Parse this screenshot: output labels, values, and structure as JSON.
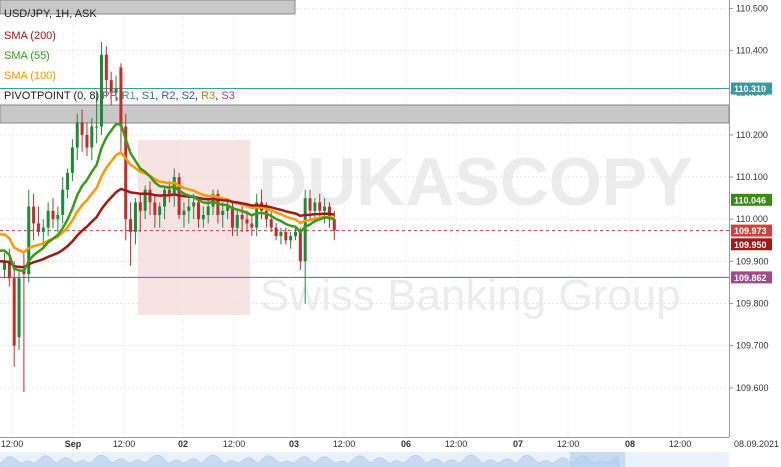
{
  "chart_data": {
    "type": "candlestick",
    "title": "USD/JPY, 1H, ASK",
    "watermark": {
      "brand": "DUKASCOPY",
      "tagline": "Swiss Banking Group"
    },
    "colors": {
      "up": "#1d8a3a",
      "down": "#c42b2b",
      "sma200": "#a01818",
      "sma55": "#3a9a1a",
      "sma100": "#ff9900",
      "pivot": "#3aa0a0",
      "s1line": "#a04a8a",
      "current": "#d04040"
    },
    "y_axis": {
      "min": 109.5,
      "max": 110.52,
      "ticks": [
        "110.500",
        "110.400",
        "110.300",
        "110.200",
        "110.100",
        "110.000",
        "109.900",
        "109.800",
        "109.700",
        "109.600"
      ]
    },
    "x_axis": {
      "ticks": [
        "12:00",
        "Sep",
        "12:00",
        "02",
        "12:00",
        "03",
        "12:00",
        "06",
        "12:00",
        "07",
        "12:00",
        "08",
        "12:00"
      ],
      "last_label": "08.09.2021"
    },
    "legend": [
      {
        "label": "SMA (200)",
        "color": "#a01818"
      },
      {
        "label": "SMA (55)",
        "color": "#3a9a1a"
      },
      {
        "label": "SMA (100)",
        "color": "#ff9900"
      }
    ],
    "pivot_legend": {
      "prefix": "PIVOTPOINT (0, 8)",
      "items": [
        {
          "label": "PP",
          "color": "#a04a8a"
        },
        {
          "label": "R1",
          "color": "#2a9a8a"
        },
        {
          "label": "S1",
          "color": "#2a7a8a"
        },
        {
          "label": "R2",
          "color": "#3a5aa0"
        },
        {
          "label": "S2",
          "color": "#3a5aa0"
        },
        {
          "label": "R3",
          "color": "#c07a20"
        },
        {
          "label": "S3",
          "color": "#a040a0"
        }
      ]
    },
    "price_tags": [
      {
        "value": "110.310",
        "price": 110.31,
        "color": "#3a9aa0"
      },
      {
        "value": "110.046",
        "price": 110.046,
        "color": "#3a8a1a"
      },
      {
        "value": "109.973",
        "price": 109.973,
        "color": "#d04040"
      },
      {
        "value": "109.950",
        "price": 109.95,
        "color": "#a01818"
      },
      {
        "value": "109.862",
        "price": 109.862,
        "color": "#a04a8a"
      }
    ],
    "levels": [
      {
        "name": "R1",
        "price": 110.31
      },
      {
        "name": "S1",
        "price": 109.862
      }
    ],
    "candles": [
      [
        109.88,
        109.92,
        109.86,
        109.9
      ],
      [
        109.9,
        109.93,
        109.84,
        109.86
      ],
      [
        109.86,
        109.9,
        109.65,
        109.7
      ],
      [
        109.72,
        109.88,
        109.69,
        109.86
      ],
      [
        109.88,
        109.92,
        109.59,
        109.87
      ],
      [
        109.87,
        110.07,
        109.85,
        110.03
      ],
      [
        110.03,
        110.06,
        109.95,
        109.99
      ],
      [
        109.99,
        110.03,
        109.96,
        109.97
      ],
      [
        109.97,
        110.0,
        109.93,
        109.98
      ],
      [
        109.98,
        110.04,
        109.96,
        110.02
      ],
      [
        110.02,
        110.05,
        109.98,
        110.0
      ],
      [
        110.0,
        110.03,
        109.97,
        110.01
      ],
      [
        110.01,
        110.1,
        109.99,
        110.07
      ],
      [
        110.07,
        110.12,
        110.05,
        110.11
      ],
      [
        110.11,
        110.19,
        110.09,
        110.17
      ],
      [
        110.17,
        110.25,
        110.14,
        110.23
      ],
      [
        110.23,
        110.26,
        110.16,
        110.2
      ],
      [
        110.2,
        110.23,
        110.15,
        110.17
      ],
      [
        110.17,
        110.24,
        110.14,
        110.22
      ],
      [
        110.22,
        110.3,
        110.18,
        110.22
      ],
      [
        110.22,
        110.42,
        110.2,
        110.39
      ],
      [
        110.39,
        110.41,
        110.29,
        110.33
      ],
      [
        110.33,
        110.35,
        110.27,
        110.3
      ],
      [
        110.3,
        110.34,
        110.28,
        110.31
      ],
      [
        110.36,
        110.37,
        110.16,
        110.22
      ],
      [
        110.22,
        110.25,
        109.95,
        110.0
      ],
      [
        110.0,
        110.04,
        109.89,
        109.97
      ],
      [
        109.97,
        110.05,
        109.94,
        110.04
      ],
      [
        110.04,
        110.06,
        109.97,
        110.02
      ],
      [
        110.02,
        110.08,
        110.0,
        110.07
      ],
      [
        110.07,
        110.09,
        110.01,
        110.04
      ],
      [
        110.04,
        110.06,
        109.98,
        110.01
      ],
      [
        110.01,
        110.04,
        109.98,
        110.03
      ],
      [
        110.03,
        110.08,
        110.0,
        110.07
      ],
      [
        110.07,
        110.09,
        110.04,
        110.06
      ],
      [
        110.06,
        110.12,
        110.03,
        110.1
      ],
      [
        110.1,
        110.11,
        110.0,
        110.01
      ],
      [
        110.01,
        110.04,
        109.98,
        110.02
      ],
      [
        110.02,
        110.05,
        109.99,
        110.03
      ],
      [
        110.03,
        110.06,
        110.0,
        110.04
      ],
      [
        110.04,
        110.05,
        109.98,
        110.0
      ],
      [
        110.0,
        110.03,
        109.98,
        110.01
      ],
      [
        110.01,
        110.05,
        109.99,
        110.03
      ],
      [
        110.03,
        110.07,
        110.01,
        110.06
      ],
      [
        110.06,
        110.07,
        109.99,
        110.01
      ],
      [
        110.01,
        110.04,
        109.98,
        110.02
      ],
      [
        110.02,
        110.05,
        110.0,
        110.03
      ],
      [
        110.03,
        110.04,
        109.96,
        109.98
      ],
      [
        109.98,
        110.02,
        109.96,
        110.01
      ],
      [
        110.01,
        110.03,
        109.97,
        110.0
      ],
      [
        110.0,
        110.02,
        109.97,
        109.99
      ],
      [
        109.99,
        110.01,
        109.96,
        109.98
      ],
      [
        109.98,
        110.06,
        109.96,
        110.04
      ],
      [
        110.04,
        110.07,
        110.0,
        110.02
      ],
      [
        110.02,
        110.04,
        109.98,
        110.0
      ],
      [
        110.0,
        110.02,
        109.97,
        109.98
      ],
      [
        109.98,
        109.99,
        109.95,
        109.96
      ],
      [
        109.96,
        109.98,
        109.94,
        109.97
      ],
      [
        109.97,
        109.98,
        109.94,
        109.95
      ],
      [
        109.95,
        109.97,
        109.93,
        109.96
      ],
      [
        109.96,
        109.98,
        109.95,
        109.97
      ],
      [
        109.97,
        109.98,
        109.88,
        109.9
      ],
      [
        109.9,
        110.07,
        109.8,
        110.05
      ],
      [
        110.05,
        110.07,
        110.0,
        110.02
      ],
      [
        110.02,
        110.05,
        109.99,
        110.04
      ],
      [
        110.04,
        110.06,
        110.0,
        110.02
      ],
      [
        110.02,
        110.05,
        109.99,
        110.03
      ],
      [
        110.03,
        110.04,
        109.98,
        110.0
      ],
      [
        110.0,
        110.02,
        109.95,
        109.973
      ]
    ],
    "volume_band": "visible"
  }
}
